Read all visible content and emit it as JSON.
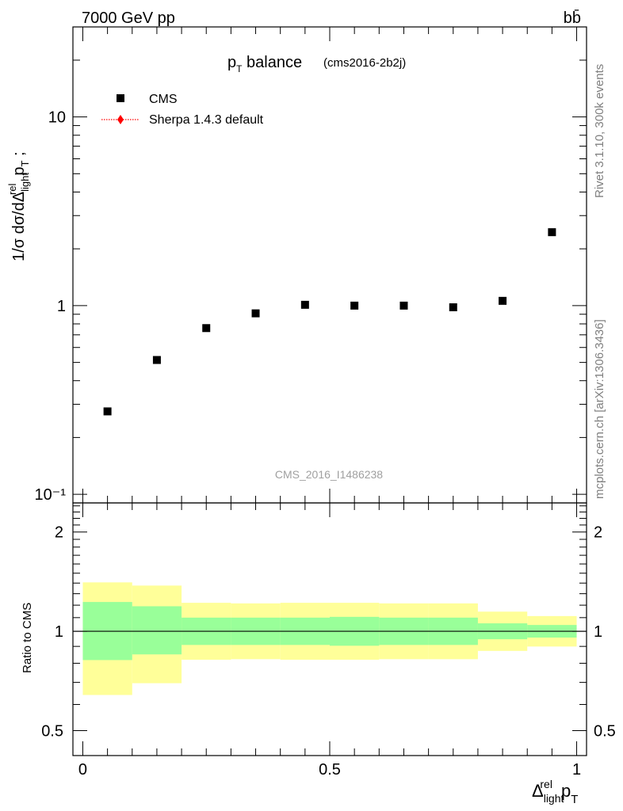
{
  "header": {
    "energy": "7000 GeV pp",
    "process": "bb̄"
  },
  "side": {
    "rivet": "Rivet 3.1.10,  300k events",
    "mcplots": "mcplots.cern.ch [arXiv:1306.3436]"
  },
  "chart_data": [
    {
      "type": "scatter",
      "title": "p_T balance",
      "subtitle": "(cms2016-2b2j)",
      "watermark": "CMS_2016_I1486238",
      "ylabel": "1/σ dσ/dΔ^rel_light p_T ;",
      "yscale": "log",
      "xlim": [
        -0.02,
        1.02
      ],
      "ylim": [
        0.09,
        30
      ],
      "legend_position": "top-left",
      "legend": [
        {
          "name": "CMS",
          "marker": "square",
          "color": "#000000"
        },
        {
          "name": "Sherpa 1.4.3 default",
          "marker": "diamond",
          "color": "#ff0000"
        }
      ],
      "yticks": [
        {
          "value": 0.1,
          "label": "10⁻¹"
        },
        {
          "value": 1,
          "label": "1"
        },
        {
          "value": 10,
          "label": "10"
        }
      ],
      "series": [
        {
          "name": "CMS",
          "x": [
            0.05,
            0.15,
            0.25,
            0.35,
            0.45,
            0.55,
            0.65,
            0.75,
            0.85,
            0.95
          ],
          "values": [
            0.275,
            0.515,
            0.76,
            0.91,
            1.01,
            1.0,
            1.0,
            0.98,
            1.06,
            2.45
          ]
        }
      ]
    },
    {
      "type": "area",
      "ylabel": "Ratio to CMS",
      "xlabel": "Δ^rel_light p_T",
      "xlim": [
        -0.02,
        1.02
      ],
      "ylim": [
        0.42,
        2.45
      ],
      "yscale": "log",
      "reference_line": 1,
      "xticks": [
        {
          "value": 0,
          "label": "0"
        },
        {
          "value": 0.5,
          "label": "0.5"
        },
        {
          "value": 1,
          "label": "1"
        }
      ],
      "yticks": [
        {
          "value": 0.5,
          "label": "0.5"
        },
        {
          "value": 1,
          "label": "1"
        },
        {
          "value": 2,
          "label": "2"
        }
      ],
      "bins": [
        {
          "x0": 0.0,
          "x1": 0.1,
          "stat": [
            0.818,
            1.227
          ],
          "total": [
            0.641,
            1.407
          ]
        },
        {
          "x0": 0.1,
          "x1": 0.2,
          "stat": [
            0.851,
            1.191
          ],
          "total": [
            0.696,
            1.376
          ]
        },
        {
          "x0": 0.2,
          "x1": 0.3,
          "stat": [
            0.909,
            1.1
          ],
          "total": [
            0.82,
            1.22
          ]
        },
        {
          "x0": 0.3,
          "x1": 0.4,
          "stat": [
            0.909,
            1.1
          ],
          "total": [
            0.823,
            1.215
          ]
        },
        {
          "x0": 0.4,
          "x1": 0.5,
          "stat": [
            0.909,
            1.1
          ],
          "total": [
            0.82,
            1.22
          ]
        },
        {
          "x0": 0.5,
          "x1": 0.6,
          "stat": [
            0.904,
            1.106
          ],
          "total": [
            0.82,
            1.22
          ]
        },
        {
          "x0": 0.6,
          "x1": 0.7,
          "stat": [
            0.909,
            1.1
          ],
          "total": [
            0.823,
            1.215
          ]
        },
        {
          "x0": 0.7,
          "x1": 0.8,
          "stat": [
            0.909,
            1.1
          ],
          "total": [
            0.823,
            1.215
          ]
        },
        {
          "x0": 0.8,
          "x1": 0.9,
          "stat": [
            0.946,
            1.057
          ],
          "total": [
            0.872,
            1.147
          ]
        },
        {
          "x0": 0.9,
          "x1": 1.0,
          "stat": [
            0.957,
            1.045
          ],
          "total": [
            0.899,
            1.112
          ]
        }
      ],
      "colors": {
        "stat": "#99ff99",
        "total": "#ffff99"
      }
    }
  ]
}
